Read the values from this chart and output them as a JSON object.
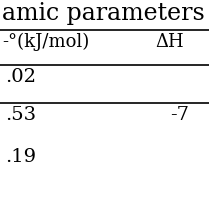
{
  "title": "amic parameters",
  "col1_header": "-°(kJ/mol)",
  "col2_header": "ΔH",
  "rows": [
    [
      ".02",
      ""
    ],
    [
      ".53",
      "-7"
    ],
    [
      ".19",
      ""
    ]
  ],
  "bg_color": "#ffffff",
  "text_color": "#000000",
  "font_size": 14,
  "header_font_size": 13,
  "title_font_size": 17,
  "line_color": "#000000"
}
